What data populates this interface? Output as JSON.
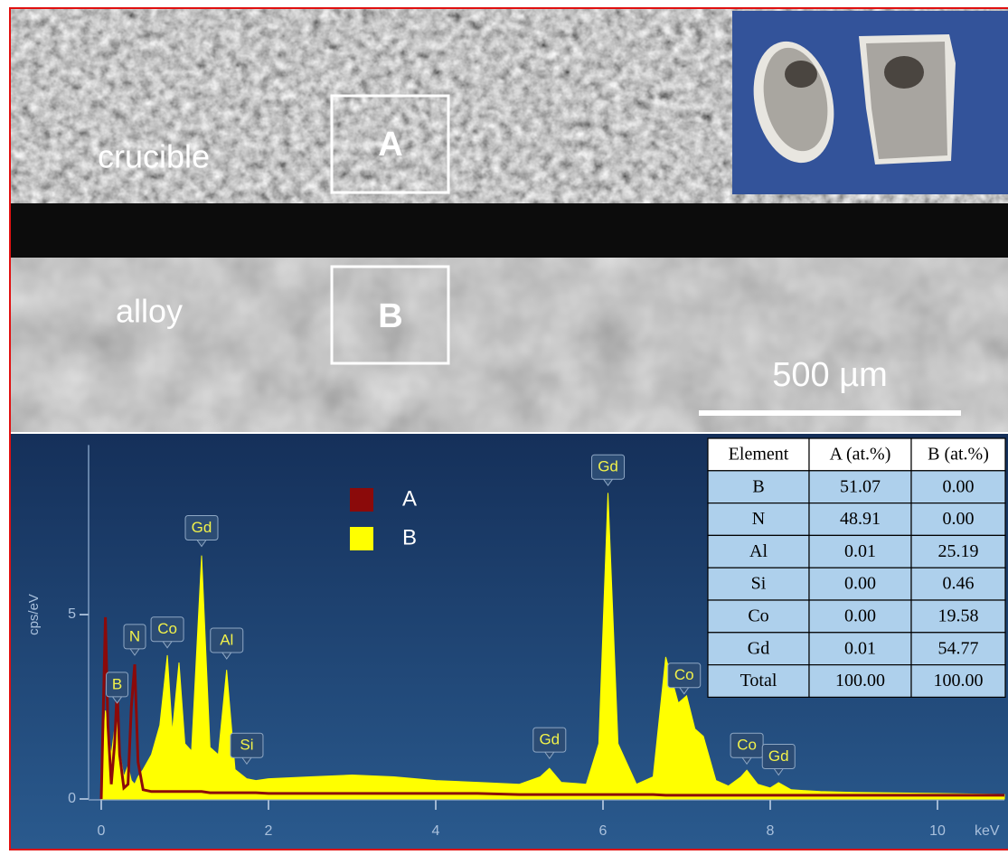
{
  "image": {
    "labels": [
      "crucible",
      "alloy"
    ],
    "regions": [
      "A",
      "B"
    ],
    "scale_bar": "500 µm"
  },
  "chart_data": {
    "type": "area",
    "y_label": "cps/eV",
    "x_label": "keV",
    "xlim": [
      0,
      10.8
    ],
    "ylim": [
      0,
      9.6
    ],
    "xticks": [
      0,
      2,
      4,
      6,
      8,
      10
    ],
    "yticks": [
      0,
      5
    ],
    "x": [
      0,
      0.03,
      0.05,
      0.08,
      0.12,
      0.16,
      0.19,
      0.22,
      0.27,
      0.32,
      0.36,
      0.4,
      0.44,
      0.5,
      0.6,
      0.7,
      0.79,
      0.85,
      0.93,
      1.0,
      1.08,
      1.2,
      1.3,
      1.4,
      1.5,
      1.6,
      1.74,
      1.85,
      2.0,
      2.5,
      3.0,
      3.5,
      4.0,
      4.5,
      5.0,
      5.25,
      5.36,
      5.5,
      5.8,
      5.95,
      6.06,
      6.18,
      6.4,
      6.6,
      6.75,
      6.9,
      7.0,
      7.1,
      7.2,
      7.35,
      7.5,
      7.65,
      7.72,
      7.85,
      8.0,
      8.1,
      8.25,
      8.6,
      9.0,
      10.0,
      10.8
    ],
    "series": [
      {
        "name": "A",
        "color": "#8b0a0a",
        "values": [
          0,
          3.0,
          4.93,
          2.0,
          0.4,
          1.5,
          3.0,
          1.2,
          0.3,
          0.4,
          2.5,
          3.65,
          1.0,
          0.25,
          0.2,
          0.2,
          0.2,
          0.2,
          0.2,
          0.2,
          0.2,
          0.2,
          0.17,
          0.17,
          0.17,
          0.17,
          0.17,
          0.17,
          0.15,
          0.15,
          0.15,
          0.15,
          0.15,
          0.15,
          0.12,
          0.12,
          0.12,
          0.12,
          0.12,
          0.12,
          0.12,
          0.12,
          0.12,
          0.12,
          0.1,
          0.1,
          0.1,
          0.1,
          0.1,
          0.1,
          0.1,
          0.1,
          0.1,
          0.1,
          0.1,
          0.1,
          0.1,
          0.1,
          0.1,
          0.1,
          0.1
        ]
      },
      {
        "name": "B",
        "color": "#ffff00",
        "values": [
          0,
          1.5,
          2.4,
          1.8,
          1.2,
          1.9,
          2.2,
          1.3,
          0.6,
          0.9,
          0.5,
          0.4,
          0.6,
          0.8,
          1.2,
          2.0,
          3.9,
          1.8,
          3.7,
          1.5,
          1.3,
          6.6,
          1.4,
          1.2,
          3.5,
          0.8,
          0.55,
          0.5,
          0.55,
          0.6,
          0.65,
          0.6,
          0.5,
          0.45,
          0.4,
          0.6,
          0.83,
          0.45,
          0.4,
          1.5,
          8.3,
          1.5,
          0.4,
          0.6,
          3.85,
          2.6,
          2.8,
          1.9,
          1.7,
          0.5,
          0.35,
          0.6,
          0.78,
          0.4,
          0.3,
          0.44,
          0.25,
          0.2,
          0.18,
          0.15,
          0.12
        ]
      }
    ],
    "annotations": [
      {
        "text": "B",
        "x": 0.19,
        "y": 2.6
      },
      {
        "text": "N",
        "x": 0.4,
        "y": 3.9
      },
      {
        "text": "Co",
        "x": 0.79,
        "y": 4.1
      },
      {
        "text": "Gd",
        "x": 1.2,
        "y": 6.85
      },
      {
        "text": "Al",
        "x": 1.5,
        "y": 3.8
      },
      {
        "text": "Si",
        "x": 1.74,
        "y": 0.95
      },
      {
        "text": "Gd",
        "x": 5.36,
        "y": 1.1
      },
      {
        "text": "Gd",
        "x": 6.06,
        "y": 8.5
      },
      {
        "text": "Co",
        "x": 6.97,
        "y": 2.85
      },
      {
        "text": "Co",
        "x": 7.72,
        "y": 0.95
      },
      {
        "text": "Gd",
        "x": 8.1,
        "y": 0.65
      }
    ]
  },
  "table": {
    "header": [
      "Element",
      "A (at.%)",
      "B (at.%)"
    ],
    "rows": [
      [
        "B",
        "51.07",
        "0.00"
      ],
      [
        "N",
        "48.91",
        "0.00"
      ],
      [
        "Al",
        "0.01",
        "25.19"
      ],
      [
        "Si",
        "0.00",
        "0.46"
      ],
      [
        "Co",
        "0.00",
        "19.58"
      ],
      [
        "Gd",
        "0.01",
        "54.77"
      ],
      [
        "Total",
        "100.00",
        "100.00"
      ]
    ]
  }
}
